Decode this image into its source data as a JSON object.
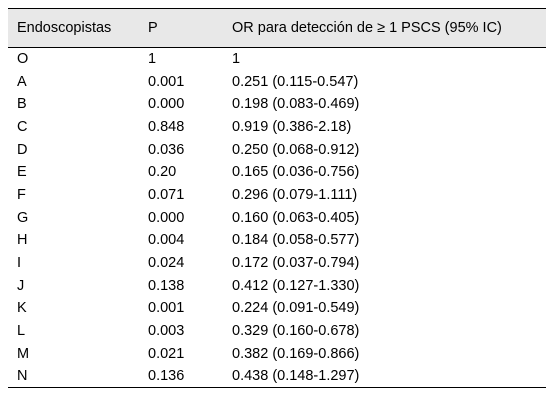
{
  "table": {
    "headers": [
      "Endoscopistas",
      "P",
      "OR para detección de ≥ 1 PSCS (95% IC)"
    ],
    "rows": [
      [
        "O",
        "1",
        "1"
      ],
      [
        "A",
        "0.001",
        "0.251 (0.115-0.547)"
      ],
      [
        "B",
        "0.000",
        "0.198 (0.083-0.469)"
      ],
      [
        "C",
        "0.848",
        "0.919 (0.386-2.18)"
      ],
      [
        "D",
        "0.036",
        "0.250 (0.068-0.912)"
      ],
      [
        "E",
        "0.20",
        "0.165 (0.036-0.756)"
      ],
      [
        "F",
        "0.071",
        "0.296 (0.079-1.111)"
      ],
      [
        "G",
        "0.000",
        "0.160 (0.063-0.405)"
      ],
      [
        "H",
        "0.004",
        "0.184 (0.058-0.577)"
      ],
      [
        "I",
        "0.024",
        "0.172 (0.037-0.794)"
      ],
      [
        "J",
        "0.138",
        "0.412 (0.127-1.330)"
      ],
      [
        "K",
        "0.001",
        "0.224 (0.091-0.549)"
      ],
      [
        "L",
        "0.003",
        "0.329 (0.160-0.678)"
      ],
      [
        "M",
        "0.021",
        "0.382 (0.169-0.866)"
      ],
      [
        "N",
        "0.136",
        "0.438 (0.148-1.297)"
      ]
    ]
  },
  "colors": {
    "header_background": "#e8e8e8",
    "rule": "#000000",
    "text": "#000000"
  }
}
